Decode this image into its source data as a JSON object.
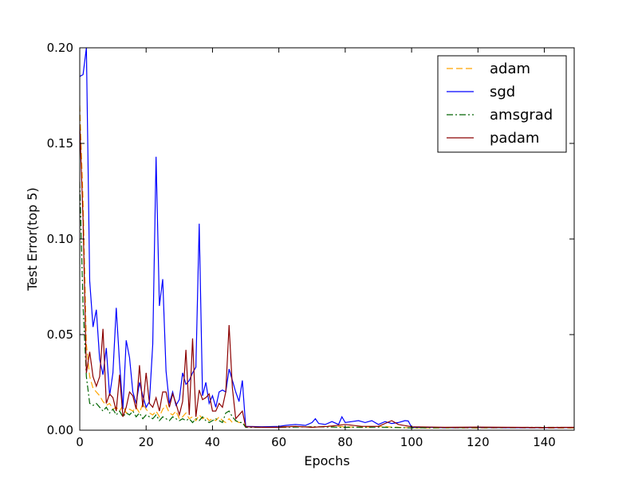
{
  "chart_data": {
    "type": "line",
    "xlabel": "Epochs",
    "ylabel": "Test Error(top 5)",
    "xlim": [
      0,
      149
    ],
    "ylim": [
      0,
      0.2
    ],
    "xticks": [
      0,
      20,
      40,
      60,
      80,
      100,
      120,
      140
    ],
    "xtick_labels": [
      "0",
      "20",
      "40",
      "60",
      "80",
      "100",
      "120",
      "140"
    ],
    "yticks": [
      0,
      0.05,
      0.1,
      0.15,
      0.2
    ],
    "ytick_labels": [
      "0.00",
      "0.05",
      "0.10",
      "0.15",
      "0.20"
    ],
    "grid": false,
    "legend_position": "top-right",
    "series": [
      {
        "name": "adam",
        "color": "#ffa500",
        "dash": "dashed",
        "points": [
          [
            0,
            0.17
          ],
          [
            1,
            0.12
          ],
          [
            2,
            0.045
          ],
          [
            3,
            0.028
          ],
          [
            4,
            0.022
          ],
          [
            5,
            0.02
          ],
          [
            6,
            0.018
          ],
          [
            7,
            0.015
          ],
          [
            8,
            0.013
          ],
          [
            9,
            0.014
          ],
          [
            10,
            0.011
          ],
          [
            11,
            0.012
          ],
          [
            12,
            0.01
          ],
          [
            13,
            0.013
          ],
          [
            14,
            0.009
          ],
          [
            15,
            0.011
          ],
          [
            16,
            0.01
          ],
          [
            17,
            0.012
          ],
          [
            18,
            0.009
          ],
          [
            19,
            0.014
          ],
          [
            20,
            0.011
          ],
          [
            21,
            0.009
          ],
          [
            22,
            0.008
          ],
          [
            23,
            0.01
          ],
          [
            24,
            0.007
          ],
          [
            25,
            0.011
          ],
          [
            26,
            0.013
          ],
          [
            27,
            0.009
          ],
          [
            28,
            0.008
          ],
          [
            29,
            0.01
          ],
          [
            30,
            0.006
          ],
          [
            31,
            0.007
          ],
          [
            32,
            0.009
          ],
          [
            33,
            0.006
          ],
          [
            34,
            0.007
          ],
          [
            35,
            0.005
          ],
          [
            36,
            0.008
          ],
          [
            37,
            0.006
          ],
          [
            38,
            0.007
          ],
          [
            39,
            0.005
          ],
          [
            40,
            0.006
          ],
          [
            41,
            0.005
          ],
          [
            42,
            0.007
          ],
          [
            43,
            0.005
          ],
          [
            44,
            0.004
          ],
          [
            45,
            0.006
          ],
          [
            46,
            0.004
          ],
          [
            47,
            0.005
          ],
          [
            48,
            0.004
          ],
          [
            49,
            0.004
          ],
          [
            50,
            0.002
          ],
          [
            55,
            0.0018
          ],
          [
            60,
            0.0018
          ],
          [
            65,
            0.002
          ],
          [
            70,
            0.0015
          ],
          [
            75,
            0.0022
          ],
          [
            80,
            0.0018
          ],
          [
            85,
            0.0015
          ],
          [
            90,
            0.002
          ],
          [
            95,
            0.0016
          ],
          [
            100,
            0.0012
          ],
          [
            110,
            0.0012
          ],
          [
            120,
            0.0011
          ],
          [
            130,
            0.0012
          ],
          [
            140,
            0.0011
          ],
          [
            149,
            0.0011
          ]
        ]
      },
      {
        "name": "sgd",
        "color": "#0000ff",
        "dash": "solid",
        "points": [
          [
            0,
            0.185
          ],
          [
            1,
            0.186
          ],
          [
            2,
            0.2
          ],
          [
            3,
            0.078
          ],
          [
            4,
            0.054
          ],
          [
            5,
            0.063
          ],
          [
            6,
            0.037
          ],
          [
            7,
            0.029
          ],
          [
            8,
            0.043
          ],
          [
            9,
            0.018
          ],
          [
            10,
            0.03
          ],
          [
            11,
            0.064
          ],
          [
            12,
            0.035
          ],
          [
            13,
            0.011
          ],
          [
            14,
            0.047
          ],
          [
            15,
            0.038
          ],
          [
            16,
            0.02
          ],
          [
            17,
            0.014
          ],
          [
            18,
            0.025
          ],
          [
            19,
            0.018
          ],
          [
            20,
            0.012
          ],
          [
            21,
            0.015
          ],
          [
            22,
            0.045
          ],
          [
            23,
            0.143
          ],
          [
            24,
            0.065
          ],
          [
            25,
            0.079
          ],
          [
            26,
            0.031
          ],
          [
            27,
            0.014
          ],
          [
            28,
            0.02
          ],
          [
            29,
            0.013
          ],
          [
            30,
            0.016
          ],
          [
            31,
            0.03
          ],
          [
            32,
            0.024
          ],
          [
            33,
            0.026
          ],
          [
            34,
            0.03
          ],
          [
            35,
            0.033
          ],
          [
            36,
            0.108
          ],
          [
            37,
            0.018
          ],
          [
            38,
            0.025
          ],
          [
            39,
            0.014
          ],
          [
            40,
            0.018
          ],
          [
            41,
            0.012
          ],
          [
            42,
            0.02
          ],
          [
            43,
            0.021
          ],
          [
            44,
            0.02
          ],
          [
            45,
            0.032
          ],
          [
            46,
            0.026
          ],
          [
            47,
            0.02
          ],
          [
            48,
            0.015
          ],
          [
            49,
            0.026
          ],
          [
            50,
            0.002
          ],
          [
            55,
            0.0018
          ],
          [
            60,
            0.002
          ],
          [
            62,
            0.0025
          ],
          [
            65,
            0.003
          ],
          [
            68,
            0.0025
          ],
          [
            70,
            0.004
          ],
          [
            71,
            0.006
          ],
          [
            72,
            0.0035
          ],
          [
            74,
            0.003
          ],
          [
            76,
            0.0045
          ],
          [
            78,
            0.003
          ],
          [
            79,
            0.007
          ],
          [
            80,
            0.004
          ],
          [
            82,
            0.0045
          ],
          [
            84,
            0.005
          ],
          [
            86,
            0.004
          ],
          [
            88,
            0.005
          ],
          [
            90,
            0.003
          ],
          [
            92,
            0.0045
          ],
          [
            94,
            0.0035
          ],
          [
            96,
            0.004
          ],
          [
            98,
            0.005
          ],
          [
            99,
            0.0048
          ],
          [
            100,
            0.0015
          ],
          [
            105,
            0.0015
          ],
          [
            110,
            0.0013
          ],
          [
            120,
            0.0014
          ],
          [
            130,
            0.0013
          ],
          [
            140,
            0.0013
          ],
          [
            149,
            0.0014
          ]
        ]
      },
      {
        "name": "amsgrad",
        "color": "#006400",
        "dash": "dashdot",
        "points": [
          [
            0,
            0.13
          ],
          [
            1,
            0.065
          ],
          [
            2,
            0.028
          ],
          [
            3,
            0.014
          ],
          [
            4,
            0.013
          ],
          [
            5,
            0.014
          ],
          [
            6,
            0.012
          ],
          [
            7,
            0.01
          ],
          [
            8,
            0.012
          ],
          [
            9,
            0.009
          ],
          [
            10,
            0.011
          ],
          [
            11,
            0.008
          ],
          [
            12,
            0.01
          ],
          [
            13,
            0.007
          ],
          [
            14,
            0.009
          ],
          [
            15,
            0.008
          ],
          [
            16,
            0.01
          ],
          [
            17,
            0.007
          ],
          [
            18,
            0.009
          ],
          [
            19,
            0.006
          ],
          [
            20,
            0.008
          ],
          [
            21,
            0.007
          ],
          [
            22,
            0.006
          ],
          [
            23,
            0.008
          ],
          [
            24,
            0.005
          ],
          [
            25,
            0.007
          ],
          [
            26,
            0.006
          ],
          [
            27,
            0.005
          ],
          [
            28,
            0.007
          ],
          [
            29,
            0.006
          ],
          [
            30,
            0.005
          ],
          [
            31,
            0.006
          ],
          [
            32,
            0.005
          ],
          [
            33,
            0.006
          ],
          [
            34,
            0.004
          ],
          [
            35,
            0.006
          ],
          [
            36,
            0.005
          ],
          [
            37,
            0.007
          ],
          [
            38,
            0.005
          ],
          [
            39,
            0.004
          ],
          [
            40,
            0.005
          ],
          [
            41,
            0.006
          ],
          [
            42,
            0.005
          ],
          [
            43,
            0.004
          ],
          [
            44,
            0.009
          ],
          [
            45,
            0.01
          ],
          [
            46,
            0.007
          ],
          [
            47,
            0.005
          ],
          [
            48,
            0.004
          ],
          [
            49,
            0.004
          ],
          [
            50,
            0.0015
          ],
          [
            60,
            0.0015
          ],
          [
            70,
            0.0018
          ],
          [
            80,
            0.0015
          ],
          [
            90,
            0.0016
          ],
          [
            100,
            0.0012
          ],
          [
            110,
            0.0013
          ],
          [
            120,
            0.0014
          ],
          [
            130,
            0.0014
          ],
          [
            140,
            0.0015
          ],
          [
            149,
            0.0014
          ]
        ]
      },
      {
        "name": "padam",
        "color": "#8b0000",
        "dash": "solid",
        "points": [
          [
            0,
            0.16
          ],
          [
            1,
            0.11
          ],
          [
            2,
            0.03
          ],
          [
            3,
            0.041
          ],
          [
            4,
            0.028
          ],
          [
            5,
            0.023
          ],
          [
            6,
            0.028
          ],
          [
            7,
            0.053
          ],
          [
            8,
            0.014
          ],
          [
            9,
            0.019
          ],
          [
            10,
            0.017
          ],
          [
            11,
            0.01
          ],
          [
            12,
            0.029
          ],
          [
            13,
            0.007
          ],
          [
            14,
            0.012
          ],
          [
            15,
            0.02
          ],
          [
            16,
            0.018
          ],
          [
            17,
            0.011
          ],
          [
            18,
            0.034
          ],
          [
            19,
            0.012
          ],
          [
            20,
            0.03
          ],
          [
            21,
            0.014
          ],
          [
            22,
            0.012
          ],
          [
            23,
            0.017
          ],
          [
            24,
            0.01
          ],
          [
            25,
            0.02
          ],
          [
            26,
            0.02
          ],
          [
            27,
            0.012
          ],
          [
            28,
            0.019
          ],
          [
            29,
            0.014
          ],
          [
            30,
            0.008
          ],
          [
            31,
            0.015
          ],
          [
            32,
            0.042
          ],
          [
            33,
            0.008
          ],
          [
            34,
            0.048
          ],
          [
            35,
            0.007
          ],
          [
            36,
            0.021
          ],
          [
            37,
            0.016
          ],
          [
            38,
            0.017
          ],
          [
            39,
            0.019
          ],
          [
            40,
            0.01
          ],
          [
            41,
            0.01
          ],
          [
            42,
            0.014
          ],
          [
            43,
            0.012
          ],
          [
            44,
            0.02
          ],
          [
            45,
            0.055
          ],
          [
            46,
            0.022
          ],
          [
            47,
            0.006
          ],
          [
            48,
            0.008
          ],
          [
            49,
            0.01
          ],
          [
            50,
            0.0018
          ],
          [
            55,
            0.0015
          ],
          [
            60,
            0.0015
          ],
          [
            65,
            0.002
          ],
          [
            70,
            0.0015
          ],
          [
            75,
            0.002
          ],
          [
            80,
            0.003
          ],
          [
            85,
            0.002
          ],
          [
            90,
            0.002
          ],
          [
            94,
            0.005
          ],
          [
            96,
            0.003
          ],
          [
            100,
            0.0018
          ],
          [
            110,
            0.0015
          ],
          [
            120,
            0.0016
          ],
          [
            130,
            0.0015
          ],
          [
            140,
            0.0014
          ],
          [
            149,
            0.0015
          ]
        ]
      }
    ]
  }
}
